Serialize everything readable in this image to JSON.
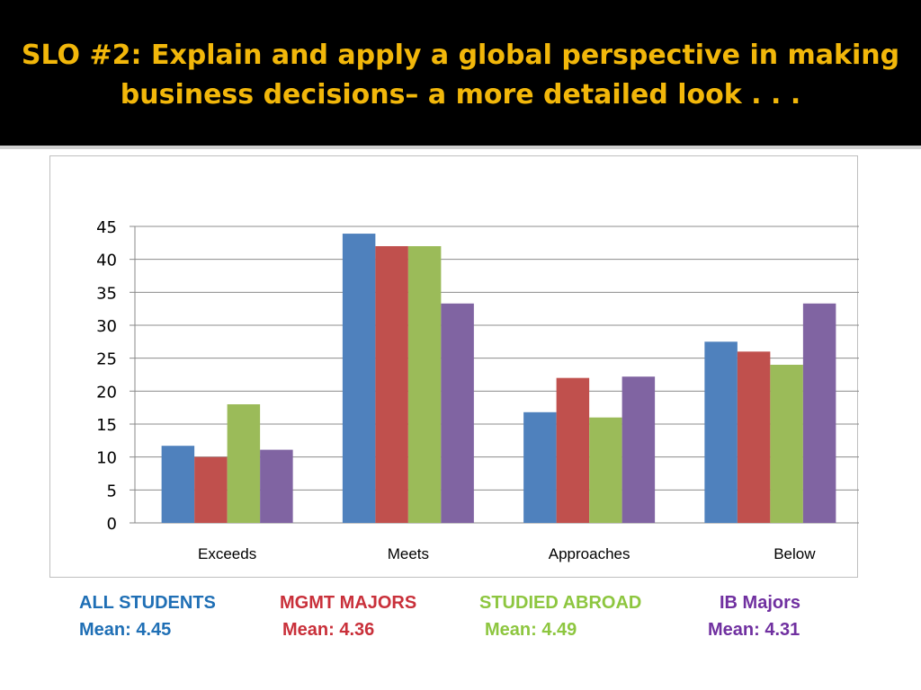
{
  "slide": {
    "title": "SLO #2: Explain and apply a global perspective in making business decisions– a more detailed look . . ."
  },
  "colors": {
    "title": "#f2b70a",
    "background": "#000000"
  },
  "chart_data": {
    "type": "bar",
    "categories": [
      "Exceeds",
      "Meets",
      "Approaches",
      "Below"
    ],
    "ylim": [
      0,
      45
    ],
    "yticks": [
      0,
      5,
      10,
      15,
      20,
      25,
      30,
      35,
      40,
      45
    ],
    "grid": true,
    "series": [
      {
        "name": "ALL STUDENTS",
        "color": "#4f81bd",
        "values": [
          11.7,
          43.9,
          16.8,
          27.5
        ]
      },
      {
        "name": "MGMT MAJORS",
        "color": "#c0504d",
        "values": [
          10,
          42,
          22,
          26
        ]
      },
      {
        "name": "STUDIED ABROAD",
        "color": "#9bbb59",
        "values": [
          18,
          42,
          16,
          24
        ]
      },
      {
        "name": "IB Majors",
        "color": "#8064a2",
        "values": [
          11.1,
          33.3,
          22.2,
          33.3
        ]
      }
    ]
  },
  "legend": [
    {
      "name": "ALL STUDENTS",
      "mean": "Mean: 4.45",
      "color": "#1f6fb5"
    },
    {
      "name": "MGMT MAJORS",
      "mean": "Mean: 4.36",
      "color": "#c9303a"
    },
    {
      "name": "STUDIED ABROAD",
      "mean": "Mean: 4.49",
      "color": "#8dc63f"
    },
    {
      "name": "IB Majors",
      "mean": "Mean: 4.31",
      "color": "#7030a0"
    }
  ]
}
